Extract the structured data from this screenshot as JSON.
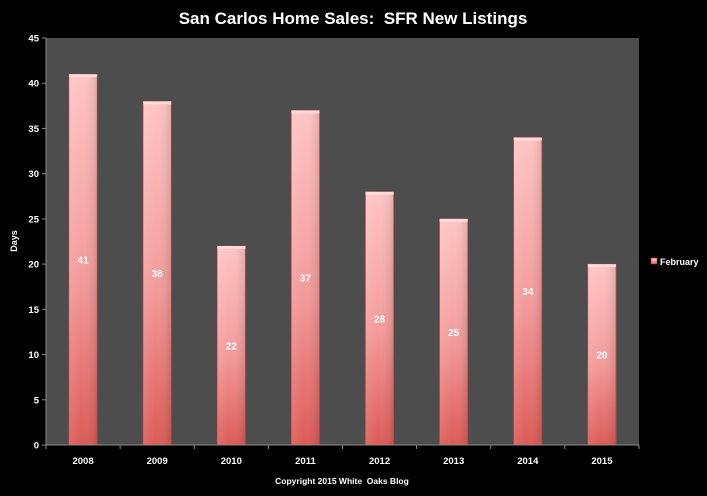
{
  "chart_data": {
    "type": "bar",
    "title": "San Carlos Home Sales:  SFR New Listings",
    "xlabel": "",
    "ylabel": "Days",
    "categories": [
      "2008",
      "2009",
      "2010",
      "2011",
      "2012",
      "2013",
      "2014",
      "2015"
    ],
    "series": [
      {
        "name": "February",
        "values": [
          41,
          38,
          22,
          37,
          28,
          25,
          34,
          20
        ]
      }
    ],
    "ylim": [
      0,
      45
    ],
    "yticks": [
      0,
      5,
      10,
      15,
      20,
      25,
      30,
      35,
      40,
      45
    ],
    "grid": false,
    "legend_position": "right",
    "data_labels": true,
    "footer": "Copyright 2015 White  Oaks Blog",
    "colors": {
      "background": "#000000",
      "plot_area": "#4d4d4d",
      "bar_light": "#ffb8b8",
      "bar_dark": "#d9534f",
      "text": "#ffffff"
    }
  }
}
